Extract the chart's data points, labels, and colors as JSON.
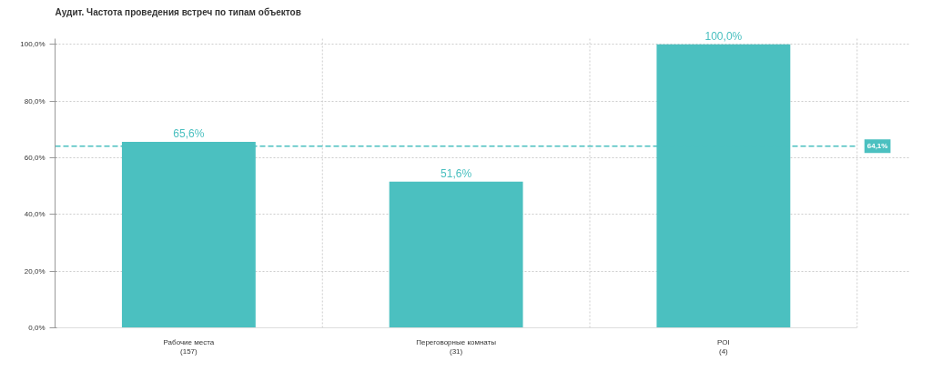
{
  "chart_data": {
    "type": "bar",
    "title": "Аудит. Частота проведения встреч по типам объектов",
    "categories": [
      "Рабочие места\n(157)",
      "Переговорные комнаты\n(31)",
      "POI\n(4)"
    ],
    "values": [
      65.6,
      51.6,
      100.0
    ],
    "value_labels": [
      "65,6%",
      "51,6%",
      "100,0%"
    ],
    "color": "#4bc0c0",
    "ylim": [
      0,
      102
    ],
    "yticks": [
      {
        "value": 0,
        "label": "0,0%"
      },
      {
        "value": 20,
        "label": "20,0%"
      },
      {
        "value": 40,
        "label": "40,0%"
      },
      {
        "value": 60,
        "label": "60,0%"
      },
      {
        "value": 80,
        "label": "80,0%"
      },
      {
        "value": 100,
        "label": "100,0%"
      }
    ],
    "ref_lines": [
      {
        "axis": "y",
        "value": 64.1,
        "label": "64,1%",
        "color": "#4bc0c0",
        "line_style": "dashed"
      }
    ],
    "grid": true
  }
}
